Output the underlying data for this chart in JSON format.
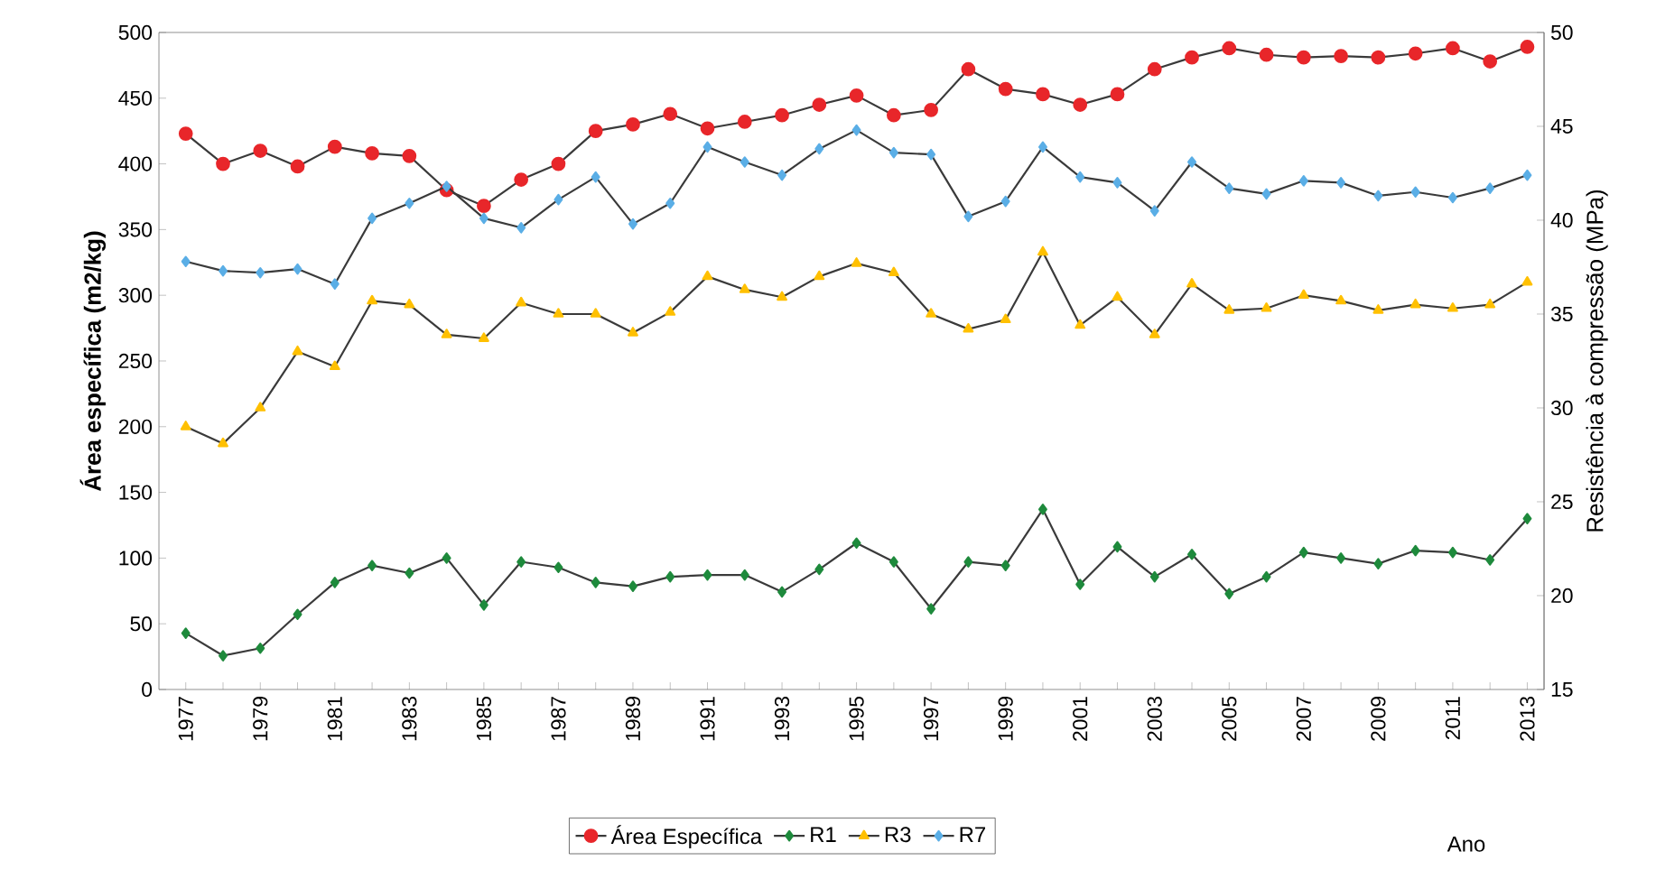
{
  "chart_data": {
    "type": "line",
    "annotations": [
      "Ano"
    ],
    "ylabel": "**Área específica (m2/kg)**",
    "y2label": "Resistência à compressão (MPa)",
    "categories": [
      "1977",
      null,
      "1979",
      null,
      "1981",
      null,
      "1983",
      null,
      "1985",
      null,
      "1987",
      null,
      "1989",
      null,
      "1991",
      null,
      "1993",
      null,
      "1995",
      null,
      "1997",
      null,
      "1999",
      null,
      "2001",
      null,
      "2003",
      null,
      "2005",
      null,
      "2007",
      null,
      "2009",
      null,
      "2011",
      null,
      "2013"
    ],
    "ylim": [
      0,
      500
    ],
    "yticks": [
      0,
      50,
      100,
      150,
      200,
      250,
      300,
      350,
      400,
      450,
      500
    ],
    "y2lim": [
      15,
      50
    ],
    "y2ticks": [
      15,
      20,
      25,
      30,
      35,
      40,
      45,
      50
    ],
    "legend": "bottom",
    "grid": false,
    "series": [
      {
        "name": "Área Específica",
        "color": "#e8262a",
        "marker": "circle",
        "values": [
          423,
          400,
          410,
          398,
          413,
          408,
          406,
          380,
          368,
          388,
          400,
          425,
          430,
          438,
          427,
          432,
          437,
          445,
          452,
          437,
          441,
          472,
          457,
          453,
          445,
          453,
          472,
          481,
          488,
          483,
          481,
          482,
          481,
          484,
          488,
          478,
          489
        ]
      },
      {
        "name": "R1",
        "color": "#1e8a3c",
        "marker": "diamond",
        "axis": "y2",
        "values": [
          18.0,
          16.8,
          17.2,
          19.0,
          20.7,
          21.6,
          21.2,
          22.0,
          19.5,
          21.8,
          21.5,
          20.7,
          20.5,
          21.0,
          21.1,
          21.1,
          20.2,
          21.4,
          22.8,
          21.8,
          19.3,
          21.8,
          21.6,
          24.6,
          20.6,
          22.6,
          21.0,
          22.2,
          20.1,
          21.0,
          22.3,
          22.0,
          21.7,
          22.4,
          22.3,
          21.9,
          24.1
        ]
      },
      {
        "name": "R3",
        "color": "#ffc000",
        "marker": "triangle",
        "axis": "y2",
        "values": [
          29.0,
          28.1,
          30.0,
          33.0,
          32.2,
          35.7,
          35.5,
          33.9,
          33.7,
          35.6,
          35.0,
          35.0,
          34.0,
          35.1,
          37.0,
          36.3,
          35.9,
          37.0,
          37.7,
          37.2,
          35.0,
          34.2,
          34.7,
          38.3,
          34.4,
          35.9,
          33.9,
          36.6,
          35.2,
          35.3,
          36.0,
          35.7,
          35.2,
          35.5,
          35.3,
          35.5,
          36.7
        ]
      },
      {
        "name": "R7",
        "color": "#5aaee6",
        "marker": "diamond",
        "axis": "y2",
        "values": [
          37.8,
          37.3,
          37.2,
          37.4,
          36.6,
          40.1,
          40.9,
          41.8,
          40.1,
          39.6,
          41.1,
          42.3,
          39.8,
          40.9,
          43.9,
          43.1,
          42.4,
          43.8,
          44.8,
          43.6,
          43.5,
          40.2,
          41.0,
          43.9,
          42.3,
          42.0,
          40.5,
          43.1,
          41.7,
          41.4,
          42.1,
          42.0,
          41.3,
          41.5,
          41.2,
          41.7,
          42.4
        ]
      }
    ]
  }
}
